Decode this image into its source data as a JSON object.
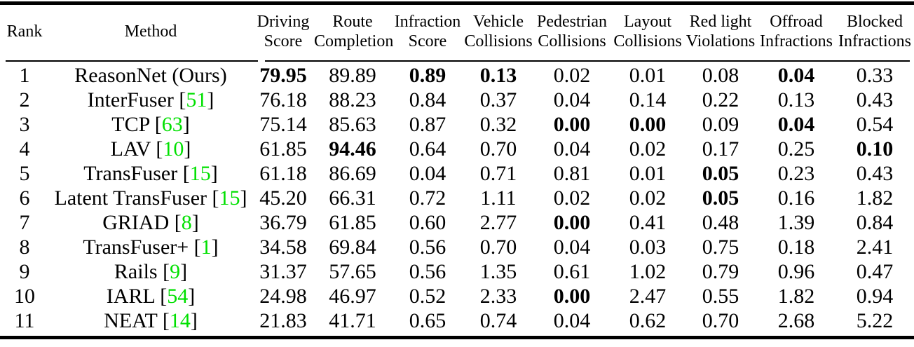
{
  "colors": {
    "background": "#ffffff",
    "text": "#000000",
    "rule": "#000000",
    "citation": "#00e000"
  },
  "table": {
    "header": {
      "rank": "Rank",
      "method": "Method",
      "metrics": [
        {
          "line1": "Driving",
          "line2": "Score"
        },
        {
          "line1": "Route",
          "line2": "Completion"
        },
        {
          "line1": "Infraction",
          "line2": "Score"
        },
        {
          "line1": "Vehicle",
          "line2": "Collisions"
        },
        {
          "line1": "Pedestrian",
          "line2": "Collisions"
        },
        {
          "line1": "Layout",
          "line2": "Collisions"
        },
        {
          "line1": "Red light",
          "line2": "Violations"
        },
        {
          "line1": "Offroad",
          "line2": "Infractions"
        },
        {
          "line1": "Blocked",
          "line2": "Infractions"
        }
      ]
    },
    "rows": [
      {
        "rank": "1",
        "method": "ReasonNet (Ours)",
        "citation": null,
        "values": [
          "79.95",
          "89.89",
          "0.89",
          "0.13",
          "0.02",
          "0.01",
          "0.08",
          "0.04",
          "0.33"
        ],
        "bold": [
          true,
          false,
          true,
          true,
          false,
          false,
          false,
          true,
          false
        ]
      },
      {
        "rank": "2",
        "method": "InterFuser",
        "citation": "51",
        "values": [
          "76.18",
          "88.23",
          "0.84",
          "0.37",
          "0.04",
          "0.14",
          "0.22",
          "0.13",
          "0.43"
        ],
        "bold": [
          false,
          false,
          false,
          false,
          false,
          false,
          false,
          false,
          false
        ]
      },
      {
        "rank": "3",
        "method": "TCP",
        "citation": "63",
        "values": [
          "75.14",
          "85.63",
          "0.87",
          "0.32",
          "0.00",
          "0.00",
          "0.09",
          "0.04",
          "0.54"
        ],
        "bold": [
          false,
          false,
          false,
          false,
          true,
          true,
          false,
          true,
          false
        ]
      },
      {
        "rank": "4",
        "method": "LAV",
        "citation": "10",
        "values": [
          "61.85",
          "94.46",
          "0.64",
          "0.70",
          "0.04",
          "0.02",
          "0.17",
          "0.25",
          "0.10"
        ],
        "bold": [
          false,
          true,
          false,
          false,
          false,
          false,
          false,
          false,
          true
        ]
      },
      {
        "rank": "5",
        "method": "TransFuser",
        "citation": "15",
        "values": [
          "61.18",
          "86.69",
          "0.04",
          "0.71",
          "0.81",
          "0.01",
          "0.05",
          "0.23",
          "0.43"
        ],
        "bold": [
          false,
          false,
          false,
          false,
          false,
          false,
          true,
          false,
          false
        ]
      },
      {
        "rank": "6",
        "method": "Latent TransFuser",
        "citation": "15",
        "values": [
          "45.20",
          "66.31",
          "0.72",
          "1.11",
          "0.02",
          "0.02",
          "0.05",
          "0.16",
          "1.82"
        ],
        "bold": [
          false,
          false,
          false,
          false,
          false,
          false,
          true,
          false,
          false
        ]
      },
      {
        "rank": "7",
        "method": "GRIAD",
        "citation": "8",
        "values": [
          "36.79",
          "61.85",
          "0.60",
          "2.77",
          "0.00",
          "0.41",
          "0.48",
          "1.39",
          "0.84"
        ],
        "bold": [
          false,
          false,
          false,
          false,
          true,
          false,
          false,
          false,
          false
        ]
      },
      {
        "rank": "8",
        "method": "TransFuser+",
        "citation": "1",
        "values": [
          "34.58",
          "69.84",
          "0.56",
          "0.70",
          "0.04",
          "0.03",
          "0.75",
          "0.18",
          "2.41"
        ],
        "bold": [
          false,
          false,
          false,
          false,
          false,
          false,
          false,
          false,
          false
        ]
      },
      {
        "rank": "9",
        "method": "Rails",
        "citation": "9",
        "values": [
          "31.37",
          "57.65",
          "0.56",
          "1.35",
          "0.61",
          "1.02",
          "0.79",
          "0.96",
          "0.47"
        ],
        "bold": [
          false,
          false,
          false,
          false,
          false,
          false,
          false,
          false,
          false
        ]
      },
      {
        "rank": "10",
        "method": "IARL",
        "citation": "54",
        "values": [
          "24.98",
          "46.97",
          "0.52",
          "2.33",
          "0.00",
          "2.47",
          "0.55",
          "1.82",
          "0.94"
        ],
        "bold": [
          false,
          false,
          false,
          false,
          true,
          false,
          false,
          false,
          false
        ]
      },
      {
        "rank": "11",
        "method": "NEAT",
        "citation": "14",
        "values": [
          "21.83",
          "41.71",
          "0.65",
          "0.74",
          "0.04",
          "0.62",
          "0.70",
          "2.68",
          "5.22"
        ],
        "bold": [
          false,
          false,
          false,
          false,
          false,
          false,
          false,
          false,
          false
        ]
      }
    ]
  }
}
